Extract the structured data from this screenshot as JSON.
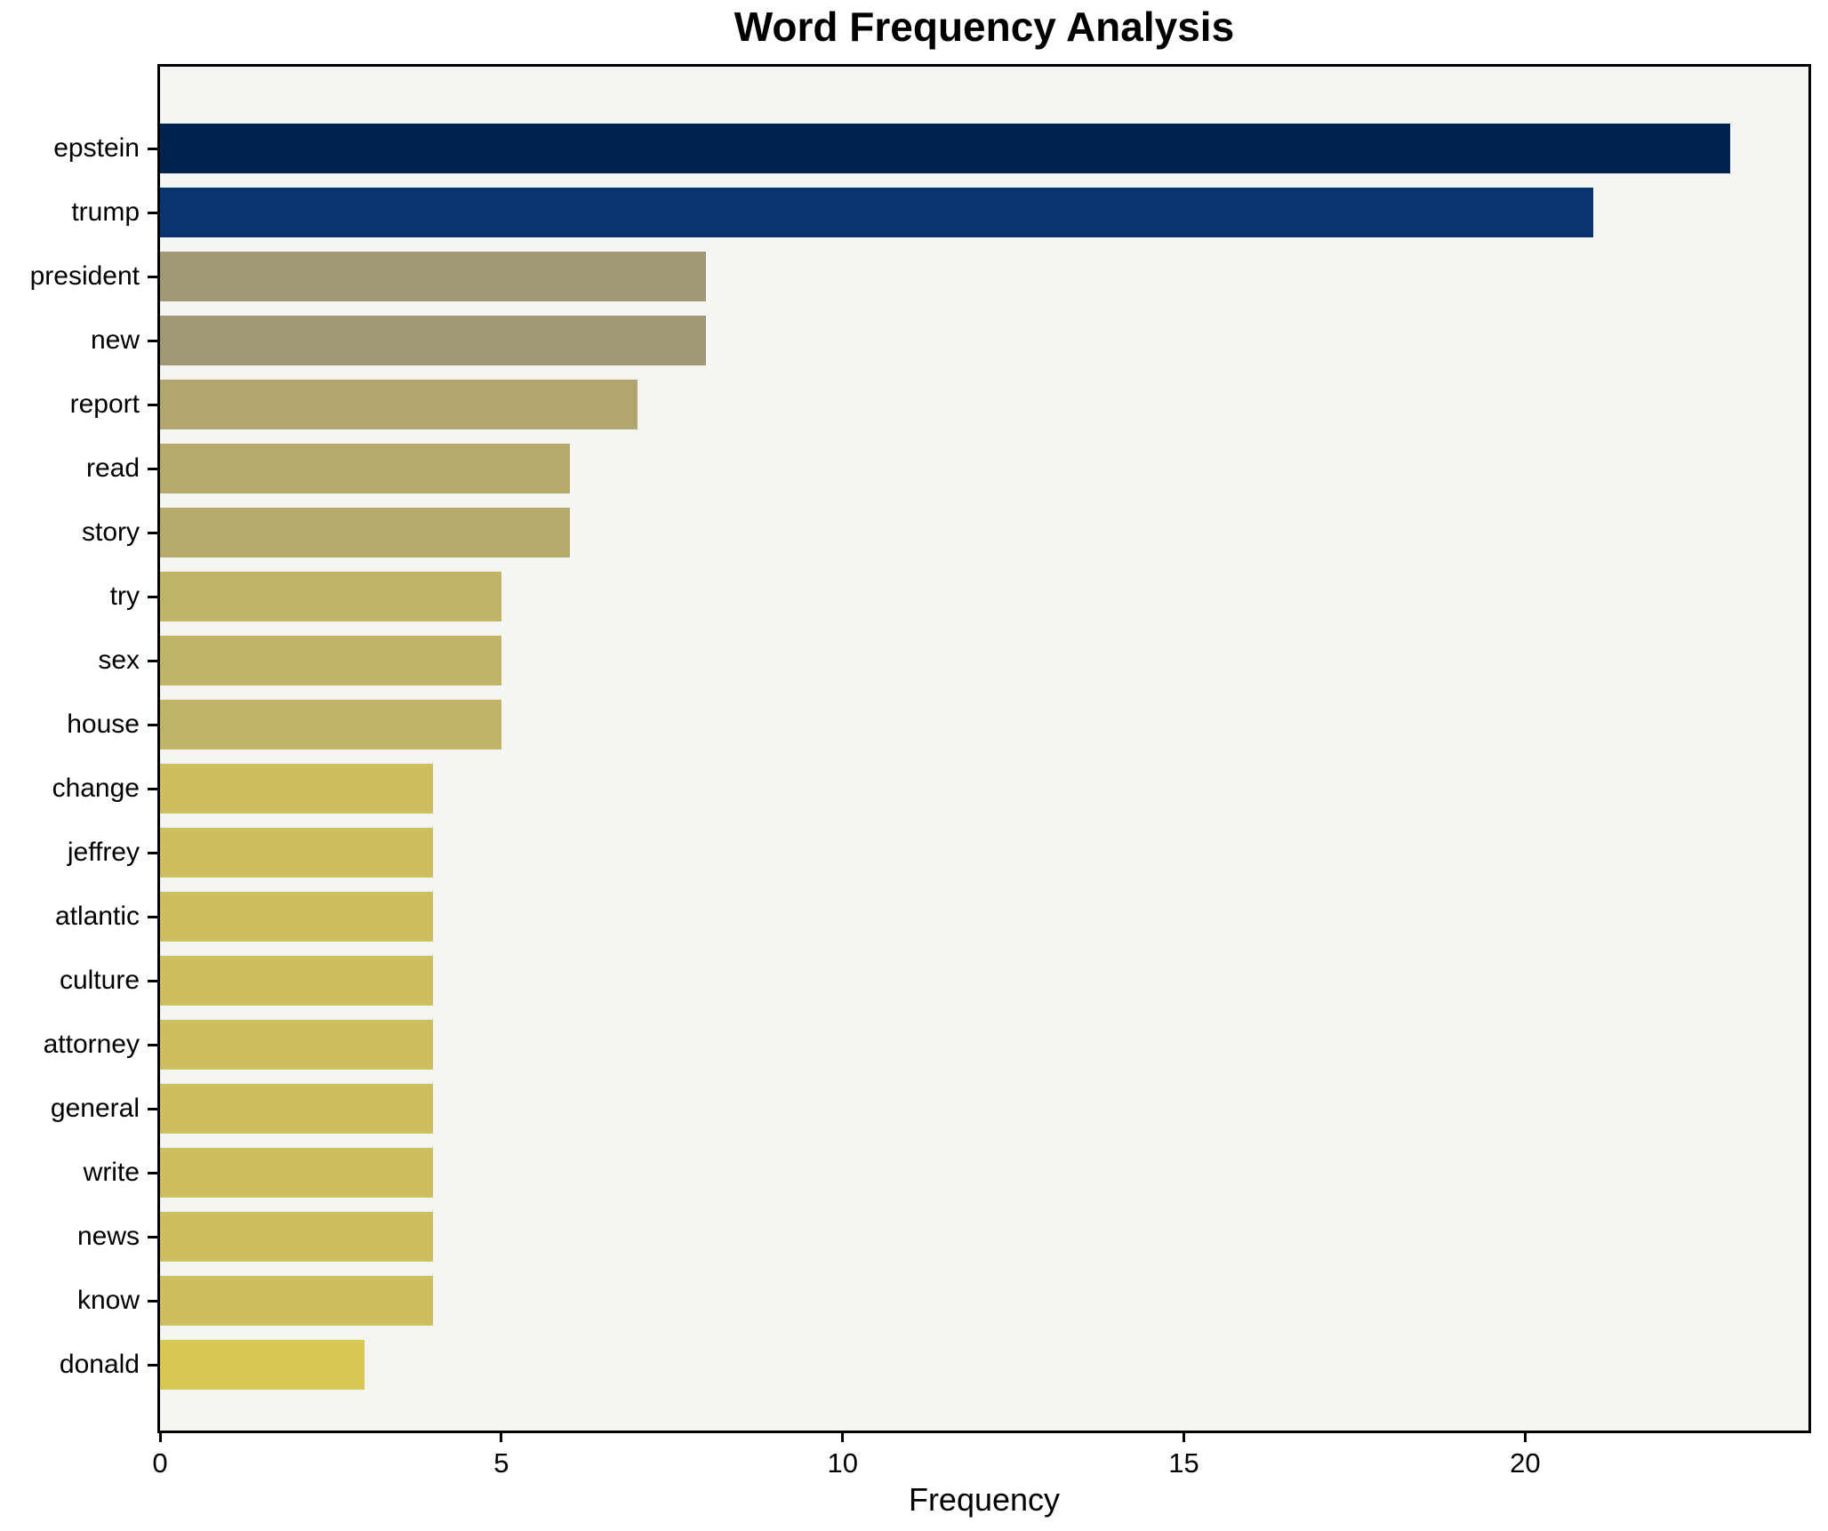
{
  "chart_data": {
    "type": "bar",
    "orientation": "horizontal",
    "title": "Word Frequency Analysis",
    "xlabel": "Frequency",
    "ylabel": "",
    "categories": [
      "epstein",
      "trump",
      "president",
      "new",
      "report",
      "read",
      "story",
      "try",
      "sex",
      "house",
      "change",
      "jeffrey",
      "atlantic",
      "culture",
      "attorney",
      "general",
      "write",
      "news",
      "know",
      "donald"
    ],
    "values": [
      23,
      21,
      8,
      8,
      7,
      6,
      6,
      5,
      5,
      5,
      4,
      4,
      4,
      4,
      4,
      4,
      4,
      4,
      4,
      3
    ],
    "bar_colors": [
      "#00224e",
      "#08356f",
      "#a09973",
      "#a09973",
      "#b1a76e",
      "#b6ab6b",
      "#b6ab6b",
      "#c2b467",
      "#c2b467",
      "#c2b467",
      "#cdbe60",
      "#cdbe60",
      "#cdbe60",
      "#cdbe60",
      "#cdbe60",
      "#cdbe60",
      "#cdbe60",
      "#cdbe60",
      "#cdbe60",
      "#d9c853"
    ],
    "xlim": [
      0,
      24.15
    ],
    "xticks": [
      0,
      5,
      10,
      15,
      20
    ],
    "grid": false,
    "legend": "none",
    "colormap": "cividis-reversed-by-value",
    "plot_background": "#f5f5f4",
    "figure_background": "#ffffff",
    "spine_color": "#000000",
    "text_color": "#000000"
  }
}
